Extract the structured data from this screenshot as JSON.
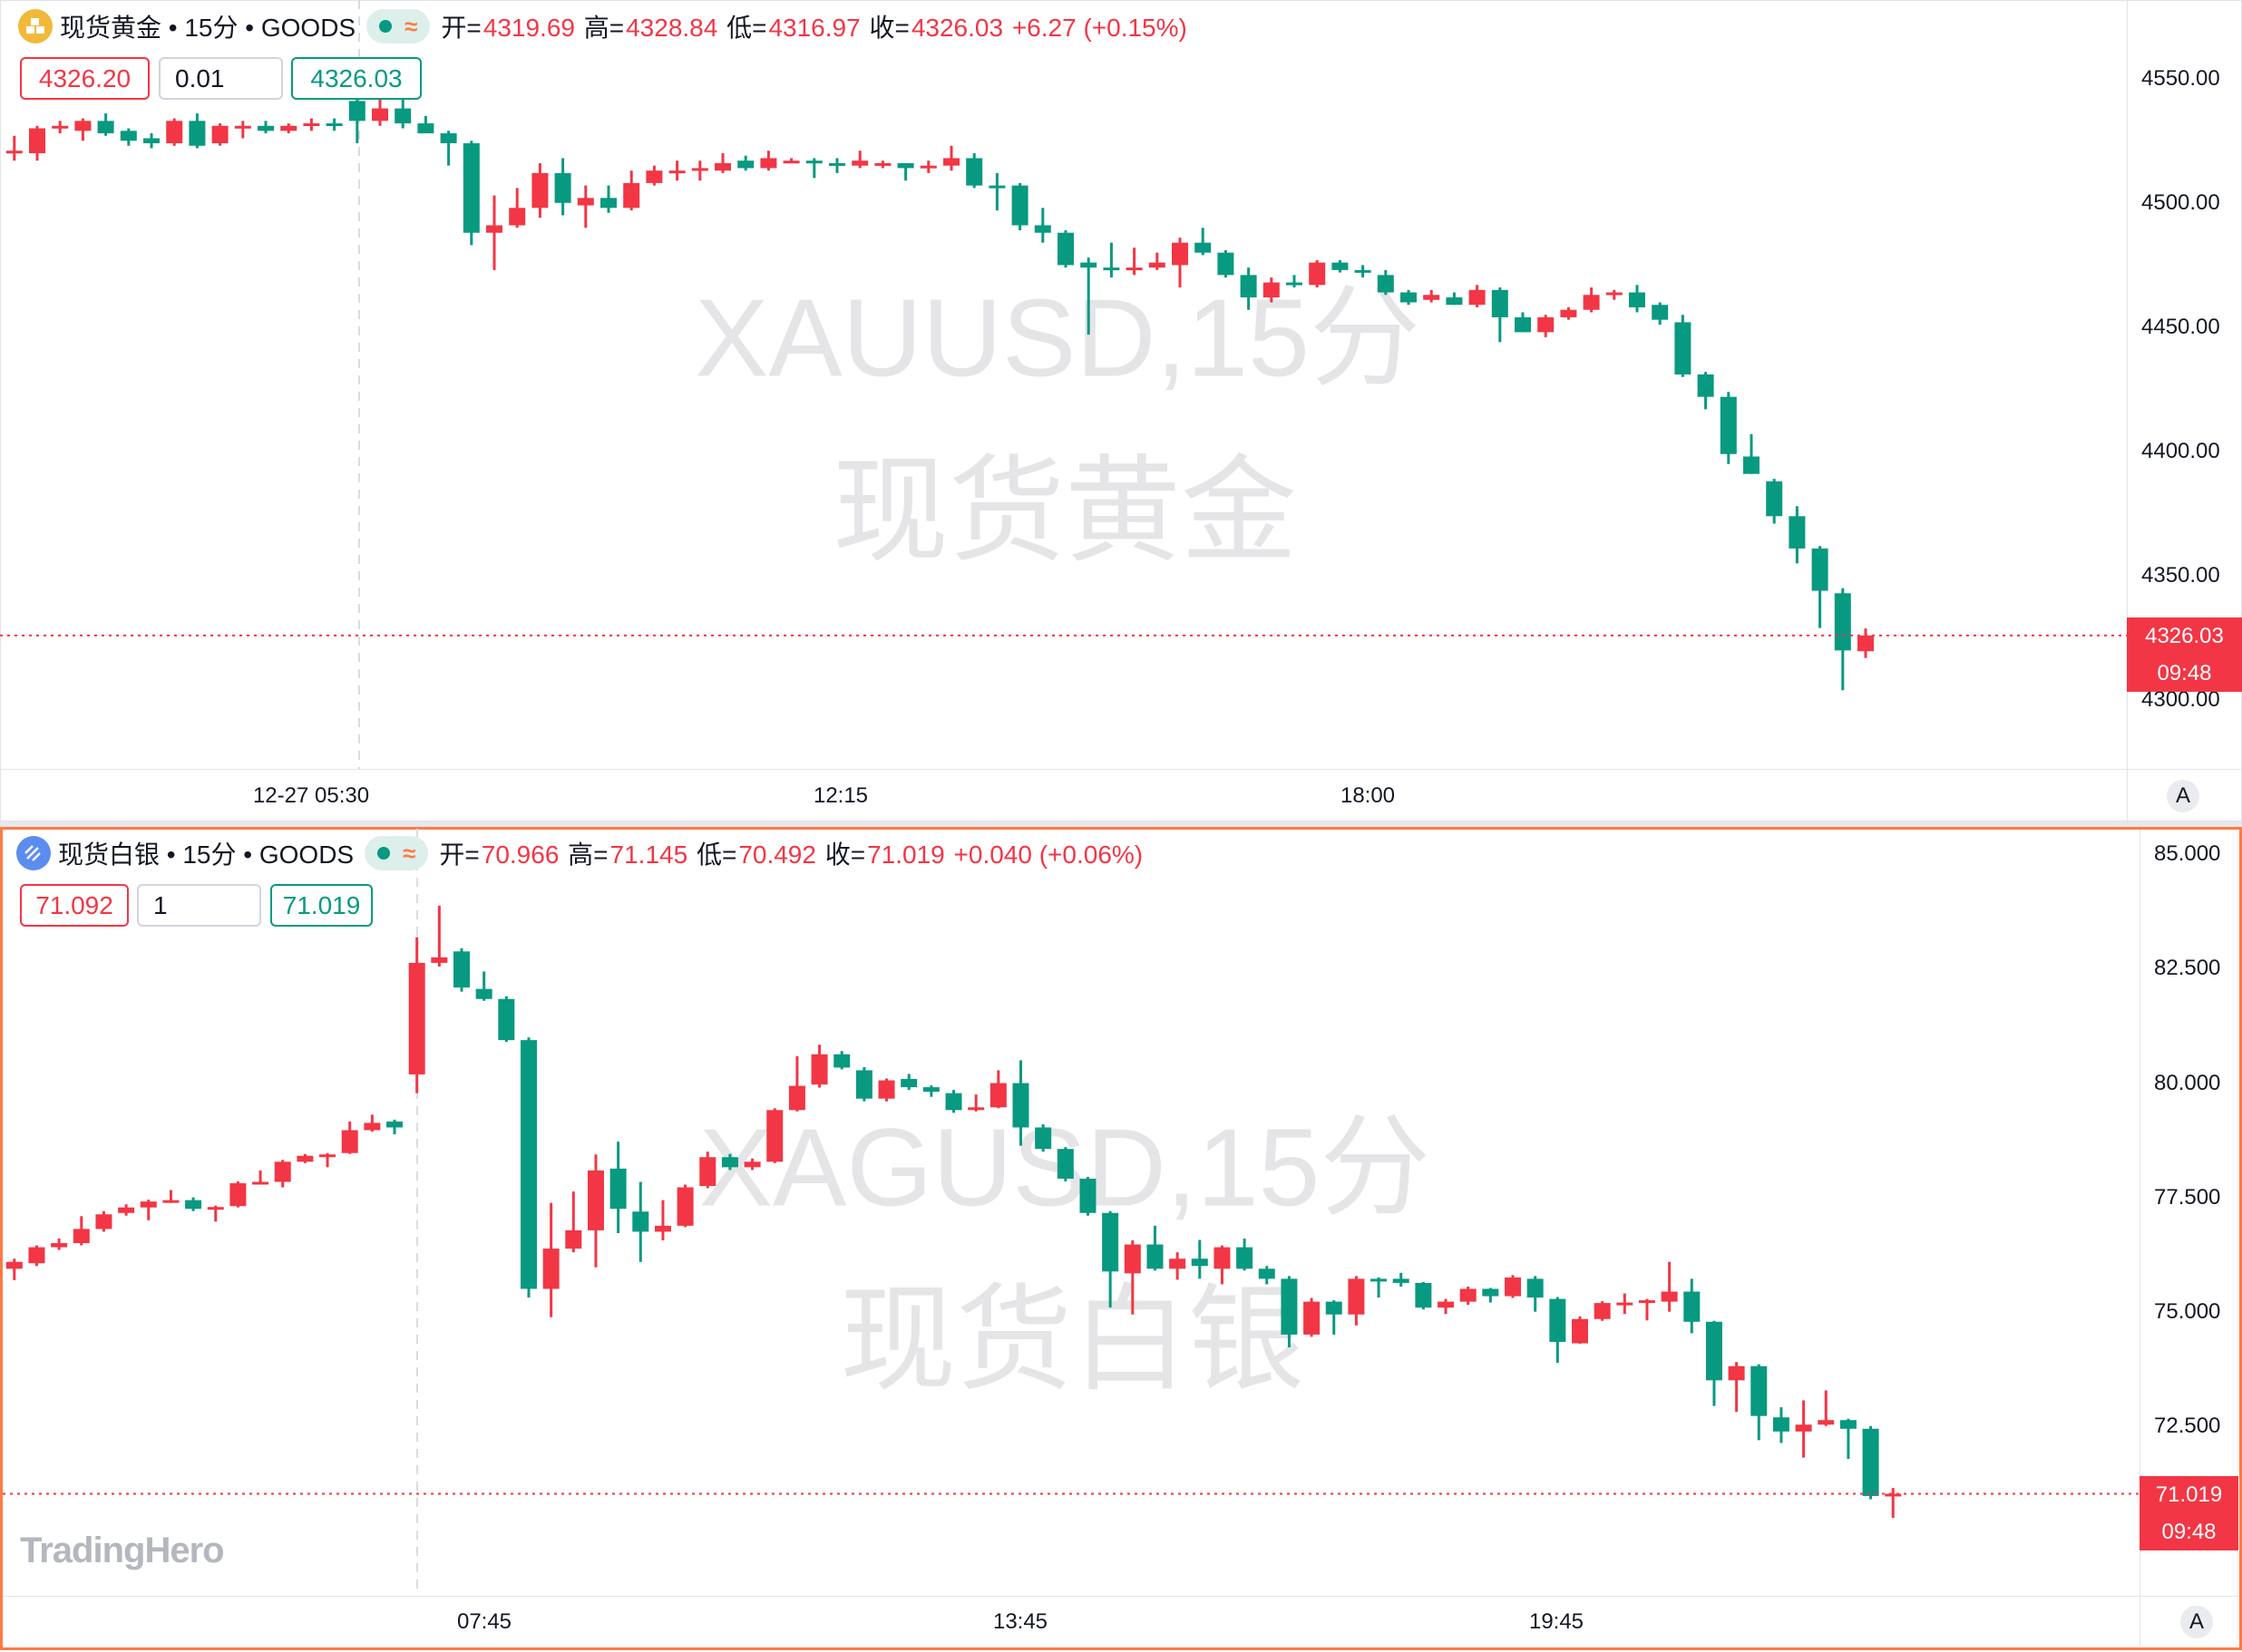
{
  "colors": {
    "up": "#f23645",
    "down": "#089981",
    "accent_border": "#ff7a45",
    "gold_icon": "#f0b93a",
    "silver_icon": "#5b8def"
  },
  "gold": {
    "icon": "gold-bars-icon",
    "title": "现货黄金 • 15分 • GOODS",
    "status_icons": [
      "market-open-dot-icon",
      "delayed-data-icon"
    ],
    "wave_glyph": "≈",
    "ohlc": {
      "open_label": "开=",
      "open": "4319.69",
      "high_label": "高=",
      "high": "4328.84",
      "low_label": "低=",
      "low": "4316.97",
      "close_label": "收=",
      "close": "4326.03",
      "change": "+6.27 (+0.15%)"
    },
    "sell_price": "4326.20",
    "quantity": "0.01",
    "buy_price": "4326.03",
    "watermark_symbol": "XAUUSD,15分",
    "watermark_name": "现货黄金",
    "price_ticks": [
      "4550.00",
      "4500.00",
      "4450.00",
      "4400.00",
      "4350.00",
      "4300.00"
    ],
    "time_ticks": [
      "12-27 05:30",
      "12:15",
      "18:00"
    ],
    "last_price": "4326.03",
    "countdown": "09:48",
    "auto_scale_label": "A",
    "chart_data": {
      "type": "candlestick",
      "interval": "15分",
      "ylim": [
        4290,
        4560
      ],
      "up_color": "#f23645",
      "down_color": "#089981",
      "candles_ohlc": [
        [
          4520,
          4527,
          4517,
          4521
        ],
        [
          4520,
          4531,
          4517,
          4530
        ],
        [
          4530,
          4533,
          4528,
          4531
        ],
        [
          4529,
          4534,
          4525,
          4533
        ],
        [
          4533,
          4536,
          4527,
          4528
        ],
        [
          4529,
          4530,
          4523,
          4525
        ],
        [
          4526,
          4528,
          4522,
          4524
        ],
        [
          4524,
          4534,
          4523,
          4533
        ],
        [
          4533,
          4536,
          4522,
          4523
        ],
        [
          4524,
          4532,
          4523,
          4531
        ],
        [
          4530,
          4533,
          4526,
          4531
        ],
        [
          4531,
          4533,
          4528,
          4529
        ],
        [
          4529,
          4532,
          4528,
          4531
        ],
        [
          4531,
          4534,
          4529,
          4532
        ],
        [
          4532,
          4534,
          4529,
          4531
        ],
        [
          4541,
          4544,
          4524,
          4533
        ],
        [
          4533,
          4543,
          4531,
          4538
        ],
        [
          4538,
          4543,
          4530,
          4532
        ],
        [
          4532,
          4535,
          4528,
          4528
        ],
        [
          4528,
          4529,
          4515,
          4524
        ],
        [
          4524,
          4525,
          4483,
          4488
        ],
        [
          4488,
          4503,
          4473,
          4491
        ],
        [
          4491,
          4506,
          4490,
          4498
        ],
        [
          4498,
          4516,
          4494,
          4512
        ],
        [
          4512,
          4518,
          4495,
          4500
        ],
        [
          4499,
          4507,
          4490,
          4502
        ],
        [
          4502,
          4507,
          4496,
          4498
        ],
        [
          4498,
          4513,
          4497,
          4508
        ],
        [
          4508,
          4515,
          4507,
          4513
        ],
        [
          4513,
          4517,
          4509,
          4513
        ],
        [
          4513,
          4517,
          4509,
          4514
        ],
        [
          4513,
          4520,
          4512,
          4516
        ],
        [
          4517,
          4519,
          4513,
          4514
        ],
        [
          4514,
          4521,
          4513,
          4518
        ],
        [
          4517,
          4518,
          4516,
          4517
        ],
        [
          4517,
          4518,
          4510,
          4516
        ],
        [
          4516,
          4518,
          4512,
          4515
        ],
        [
          4515,
          4521,
          4514,
          4517
        ],
        [
          4516,
          4517,
          4514,
          4516
        ],
        [
          4516,
          4516,
          4509,
          4514
        ],
        [
          4515,
          4517,
          4512,
          4515
        ],
        [
          4515,
          4523,
          4513,
          4518
        ],
        [
          4518,
          4520,
          4506,
          4507
        ],
        [
          4507,
          4512,
          4497,
          4506
        ],
        [
          4507,
          4508,
          4489,
          4491
        ],
        [
          4491,
          4498,
          4484,
          4488
        ],
        [
          4488,
          4489,
          4474,
          4475
        ],
        [
          4476,
          4478,
          4447,
          4474
        ],
        [
          4474,
          4484,
          4470,
          4473
        ],
        [
          4473,
          4482,
          4471,
          4474
        ],
        [
          4474,
          4480,
          4473,
          4476
        ],
        [
          4475,
          4486,
          4466,
          4484
        ],
        [
          4484,
          4490,
          4479,
          4480
        ],
        [
          4480,
          4481,
          4470,
          4471
        ],
        [
          4471,
          4474,
          4457,
          4462
        ],
        [
          4462,
          4470,
          4460,
          4468
        ],
        [
          4468,
          4471,
          4466,
          4467
        ],
        [
          4467,
          4477,
          4466,
          4476
        ],
        [
          4476,
          4477,
          4472,
          4473
        ],
        [
          4473,
          4475,
          4470,
          4472
        ],
        [
          4471,
          4473,
          4463,
          4464
        ],
        [
          4464,
          4465,
          4459,
          4460
        ],
        [
          4461,
          4465,
          4460,
          4463
        ],
        [
          4462,
          4464,
          4459,
          4459
        ],
        [
          4459,
          4467,
          4458,
          4465
        ],
        [
          4465,
          4466,
          4444,
          4454
        ],
        [
          4454,
          4456,
          4448,
          4448
        ],
        [
          4448,
          4455,
          4446,
          4454
        ],
        [
          4454,
          4458,
          4453,
          4457
        ],
        [
          4457,
          4466,
          4456,
          4463
        ],
        [
          4463,
          4465,
          4461,
          4464
        ],
        [
          4464,
          4467,
          4456,
          4458
        ],
        [
          4459,
          4460,
          4451,
          4453
        ],
        [
          4452,
          4455,
          4430,
          4431
        ],
        [
          4431,
          4432,
          4417,
          4422
        ],
        [
          4422,
          4424,
          4395,
          4399
        ],
        [
          4398,
          4407,
          4391,
          4391
        ],
        [
          4388,
          4389,
          4371,
          4374
        ],
        [
          4374,
          4378,
          4355,
          4361
        ],
        [
          4361,
          4362,
          4329,
          4344
        ],
        [
          4343,
          4345,
          4304,
          4320
        ],
        [
          4319.69,
          4328.84,
          4316.97,
          4326.03
        ]
      ]
    }
  },
  "silver": {
    "icon": "silver-bars-icon",
    "title": "现货白银 • 15分 • GOODS",
    "status_icons": [
      "market-open-dot-icon",
      "delayed-data-icon"
    ],
    "wave_glyph": "≈",
    "ohlc": {
      "open_label": "开=",
      "open": "70.966",
      "high_label": "高=",
      "high": "71.145",
      "low_label": "低=",
      "low": "70.492",
      "close_label": "收=",
      "close": "71.019",
      "change": "+0.040 (+0.06%)"
    },
    "sell_price": "71.092",
    "quantity": "1",
    "buy_price": "71.019",
    "watermark_symbol": "XAGUSD,15分",
    "watermark_name": "现货白银",
    "price_ticks": [
      "85.000",
      "82.500",
      "80.000",
      "77.500",
      "75.000",
      "72.500"
    ],
    "time_ticks": [
      "07:45",
      "13:45",
      "19:45"
    ],
    "last_price": "71.019",
    "countdown": "09:48",
    "auto_scale_label": "A",
    "logo": "TradingHero",
    "chart_data": {
      "type": "candlestick",
      "interval": "15分",
      "ylim": [
        69.3,
        85.6
      ],
      "up_color": "#f23645",
      "down_color": "#089981",
      "candles_ohlc": [
        [
          75.94,
          76.16,
          75.69,
          76.09
        ],
        [
          76.06,
          76.45,
          76.0,
          76.41
        ],
        [
          76.41,
          76.6,
          76.35,
          76.5
        ],
        [
          76.5,
          77.09,
          76.45,
          76.81
        ],
        [
          76.81,
          77.2,
          76.75,
          77.13
        ],
        [
          77.16,
          77.35,
          77.1,
          77.28
        ],
        [
          77.28,
          77.45,
          77.0,
          77.41
        ],
        [
          77.42,
          77.66,
          77.38,
          77.44
        ],
        [
          77.44,
          77.5,
          77.2,
          77.25
        ],
        [
          77.27,
          77.32,
          76.97,
          77.29
        ],
        [
          77.31,
          77.85,
          77.28,
          77.81
        ],
        [
          77.82,
          78.09,
          77.8,
          77.84
        ],
        [
          77.84,
          78.32,
          77.72,
          78.28
        ],
        [
          78.28,
          78.45,
          78.25,
          78.41
        ],
        [
          78.42,
          78.47,
          78.16,
          78.44
        ],
        [
          78.47,
          79.16,
          78.45,
          78.97
        ],
        [
          78.97,
          79.31,
          78.94,
          79.13
        ],
        [
          79.16,
          79.2,
          78.88,
          79.03
        ],
        [
          80.19,
          83.19,
          79.78,
          82.63
        ],
        [
          82.63,
          83.88,
          82.55,
          82.75
        ],
        [
          82.88,
          82.95,
          82.0,
          82.09
        ],
        [
          82.06,
          82.44,
          81.8,
          81.84
        ],
        [
          81.84,
          81.9,
          80.9,
          80.94
        ],
        [
          80.94,
          81.0,
          75.31,
          75.5
        ],
        [
          75.5,
          77.38,
          74.88,
          76.38
        ],
        [
          76.38,
          77.63,
          76.3,
          76.78
        ],
        [
          76.78,
          78.44,
          75.97,
          78.09
        ],
        [
          78.13,
          78.72,
          76.72,
          77.25
        ],
        [
          77.19,
          77.84,
          76.09,
          76.75
        ],
        [
          76.75,
          77.44,
          76.56,
          76.88
        ],
        [
          76.88,
          77.78,
          76.85,
          77.72
        ],
        [
          77.75,
          78.5,
          77.7,
          78.38
        ],
        [
          78.38,
          78.45,
          78.1,
          78.16
        ],
        [
          78.16,
          78.35,
          78.1,
          78.28
        ],
        [
          78.28,
          79.45,
          78.25,
          79.41
        ],
        [
          79.41,
          80.59,
          79.38,
          79.94
        ],
        [
          79.97,
          80.84,
          79.9,
          80.63
        ],
        [
          80.63,
          80.7,
          80.3,
          80.34
        ],
        [
          80.28,
          80.35,
          79.6,
          79.66
        ],
        [
          79.66,
          80.1,
          79.6,
          80.06
        ],
        [
          80.09,
          80.2,
          79.85,
          79.91
        ],
        [
          79.91,
          79.95,
          79.7,
          79.81
        ],
        [
          79.78,
          79.85,
          79.35,
          79.41
        ],
        [
          79.41,
          79.75,
          79.38,
          79.47
        ],
        [
          79.47,
          80.28,
          79.45,
          80.0
        ],
        [
          80.0,
          80.5,
          78.63,
          79.03
        ],
        [
          79.03,
          79.1,
          78.5,
          78.56
        ],
        [
          78.56,
          78.6,
          77.85,
          77.91
        ],
        [
          77.91,
          77.95,
          77.1,
          77.16
        ],
        [
          77.16,
          77.2,
          75.09,
          75.88
        ],
        [
          75.84,
          76.56,
          74.94,
          76.47
        ],
        [
          76.47,
          76.88,
          75.9,
          75.94
        ],
        [
          75.94,
          76.3,
          75.7,
          76.16
        ],
        [
          76.16,
          76.57,
          75.72,
          76.0
        ],
        [
          75.94,
          76.45,
          75.6,
          76.41
        ],
        [
          76.41,
          76.6,
          75.9,
          75.94
        ],
        [
          75.94,
          76.0,
          75.6,
          75.72
        ],
        [
          75.72,
          75.78,
          74.22,
          74.5
        ],
        [
          74.5,
          75.3,
          74.45,
          75.22
        ],
        [
          75.22,
          75.25,
          74.5,
          74.94
        ],
        [
          74.94,
          75.78,
          74.7,
          75.72
        ],
        [
          75.72,
          75.75,
          75.31,
          75.7
        ],
        [
          75.72,
          75.85,
          75.55,
          75.63
        ],
        [
          75.63,
          75.65,
          75.05,
          75.09
        ],
        [
          75.09,
          75.28,
          74.95,
          75.22
        ],
        [
          75.22,
          75.55,
          75.15,
          75.5
        ],
        [
          75.5,
          75.52,
          75.2,
          75.34
        ],
        [
          75.34,
          75.8,
          75.3,
          75.75
        ],
        [
          75.72,
          75.78,
          75.0,
          75.31
        ],
        [
          75.28,
          75.32,
          73.88,
          74.34
        ],
        [
          74.31,
          74.9,
          74.3,
          74.84
        ],
        [
          74.84,
          75.23,
          74.8,
          75.19
        ],
        [
          75.19,
          75.4,
          74.95,
          75.2
        ],
        [
          75.22,
          75.28,
          74.81,
          75.25
        ],
        [
          75.22,
          76.09,
          75.0,
          75.44
        ],
        [
          75.44,
          75.72,
          74.53,
          74.78
        ],
        [
          74.78,
          74.8,
          72.94,
          73.5
        ],
        [
          73.5,
          73.9,
          72.81,
          73.81
        ],
        [
          73.81,
          73.85,
          72.19,
          72.72
        ],
        [
          72.69,
          72.91,
          72.13,
          72.38
        ],
        [
          72.38,
          73.06,
          71.81,
          72.53
        ],
        [
          72.53,
          73.28,
          72.5,
          72.63
        ],
        [
          72.63,
          72.66,
          71.78,
          72.44
        ],
        [
          72.44,
          72.5,
          70.9,
          70.97
        ],
        [
          70.966,
          71.145,
          70.492,
          71.019
        ]
      ]
    }
  }
}
